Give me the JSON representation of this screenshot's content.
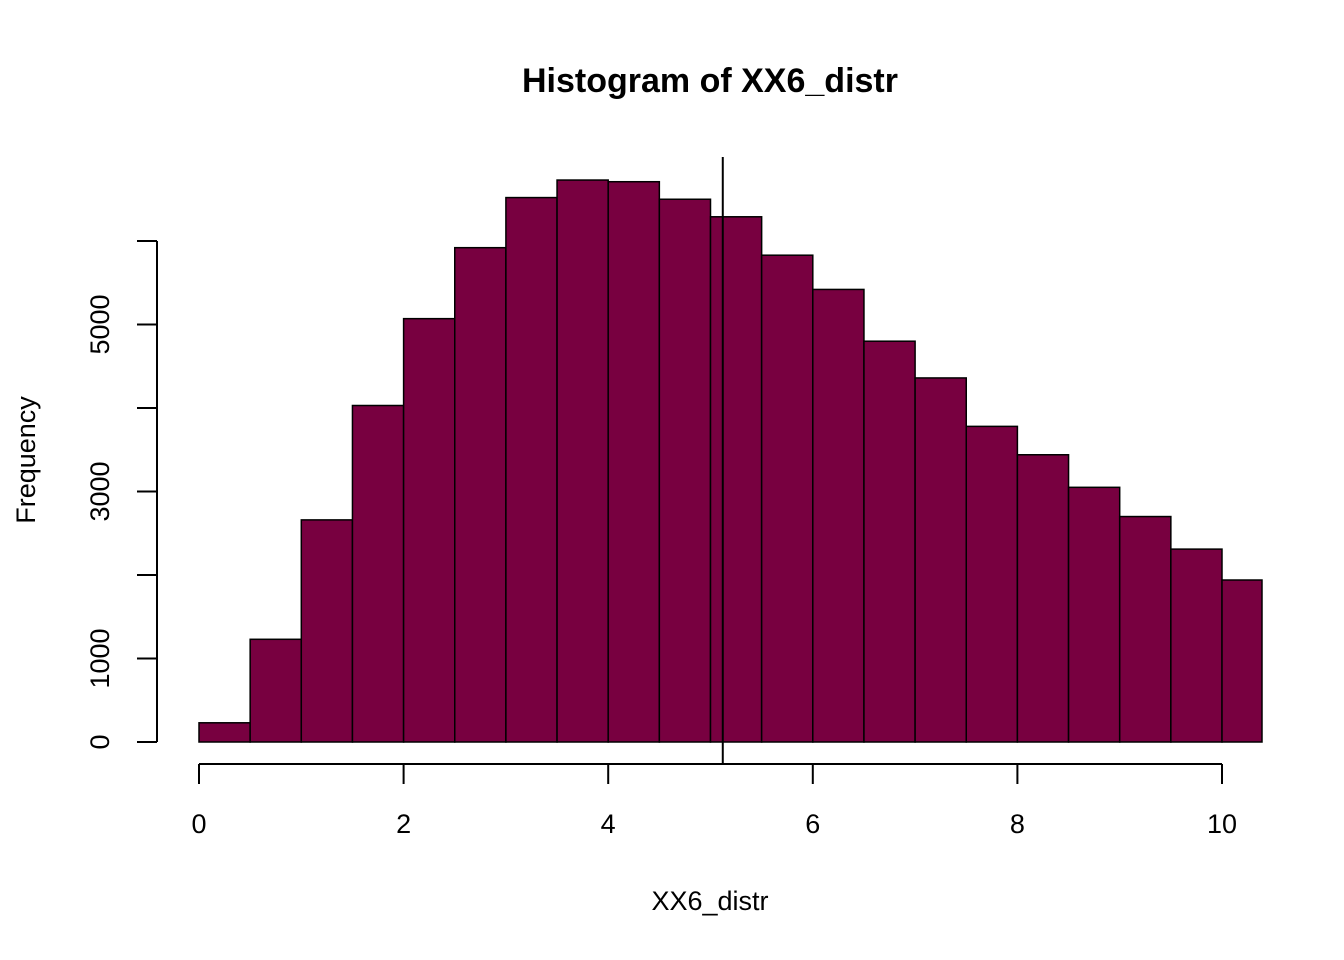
{
  "chart_data": {
    "type": "bar",
    "title": "Histogram of XX6_distr",
    "xlabel": "XX6_distr",
    "ylabel": "Frequency",
    "bar_color": "#780040",
    "edge_color": "#000000",
    "bin_width": 0.5,
    "bins": [
      {
        "x0": 0.0,
        "x1": 0.5,
        "count": 230
      },
      {
        "x0": 0.5,
        "x1": 1.0,
        "count": 1230
      },
      {
        "x0": 1.0,
        "x1": 1.5,
        "count": 2660
      },
      {
        "x0": 1.5,
        "x1": 2.0,
        "count": 4030
      },
      {
        "x0": 2.0,
        "x1": 2.5,
        "count": 5070
      },
      {
        "x0": 2.5,
        "x1": 3.0,
        "count": 5920
      },
      {
        "x0": 3.0,
        "x1": 3.5,
        "count": 6520
      },
      {
        "x0": 3.5,
        "x1": 4.0,
        "count": 6730
      },
      {
        "x0": 4.0,
        "x1": 4.5,
        "count": 6710
      },
      {
        "x0": 4.5,
        "x1": 5.0,
        "count": 6500
      },
      {
        "x0": 5.0,
        "x1": 5.5,
        "count": 6290
      },
      {
        "x0": 5.5,
        "x1": 6.0,
        "count": 5830
      },
      {
        "x0": 6.0,
        "x1": 6.5,
        "count": 5420
      },
      {
        "x0": 6.5,
        "x1": 7.0,
        "count": 4800
      },
      {
        "x0": 7.0,
        "x1": 7.5,
        "count": 4360
      },
      {
        "x0": 7.5,
        "x1": 8.0,
        "count": 3780
      },
      {
        "x0": 8.0,
        "x1": 8.5,
        "count": 3440
      },
      {
        "x0": 8.5,
        "x1": 9.0,
        "count": 3050
      },
      {
        "x0": 9.0,
        "x1": 9.5,
        "count": 2700
      },
      {
        "x0": 9.5,
        "x1": 10.0,
        "count": 2310
      },
      {
        "x0": 10.0,
        "x1": 10.5,
        "count": 1940
      }
    ],
    "vline_x": 5.12,
    "xlim": [
      0,
      10.4
    ],
    "ylim": [
      0,
      7500
    ],
    "x_ticks": [
      0,
      2,
      4,
      6,
      8,
      10
    ],
    "x_tick_labels": [
      "0",
      "2",
      "4",
      "6",
      "8",
      "10"
    ],
    "y_ticks": [
      0,
      1000,
      2000,
      3000,
      4000,
      5000,
      6000
    ],
    "y_tick_labels": [
      "0",
      "1000",
      "",
      "3000",
      "",
      "5000",
      ""
    ],
    "grid": false,
    "legend": "none"
  }
}
